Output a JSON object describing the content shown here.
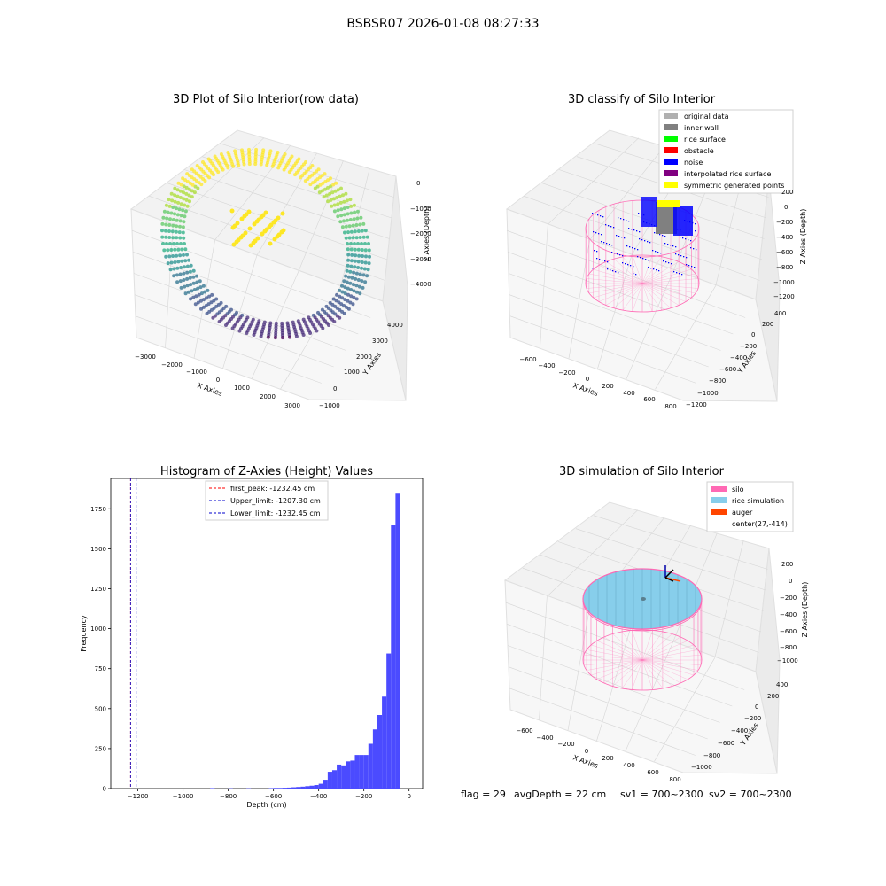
{
  "figure": {
    "suptitle": "BSBSR07 2026-01-08 08:27:33",
    "status": {
      "flag": "flag = 29",
      "avg_depth": "avgDepth = 22 cm",
      "sv1": "sv1 = 700~2300",
      "sv2": "sv2 = 700~2300"
    }
  },
  "colors": {
    "pane": "#f2f2f2",
    "pane_edge": "#e0e0e0",
    "hist_bar": "#4b4bff",
    "first_peak": "#ff0000",
    "limit": "#0000cc",
    "silo": "#ff69b4",
    "rice": "#87ceeb",
    "auger": "#ff4500",
    "noise": "#0000ff",
    "inner_wall": "#808080",
    "original": "#b0b0b0",
    "rice_surface": "#00ff00",
    "obstacle": "#ff0000",
    "interpolated": "#800080",
    "symmetric": "#ffff00"
  },
  "chart_data": [
    {
      "type": "scatter",
      "title": "3D Plot of Silo Interior(row data)",
      "xlabel": "X Axies",
      "ylabel": "Y Axies",
      "zlabel": "Z Axies (Depth)",
      "x_ticks": [
        "−3000",
        "−2000",
        "−1000",
        "0",
        "1000",
        "2000",
        "3000"
      ],
      "y_ticks": [
        "−1000",
        "0",
        "1000",
        "2000",
        "3000",
        "4000"
      ],
      "z_ticks": [
        "0",
        "−1000",
        "−2000",
        "−3000",
        "−4000"
      ],
      "colormap": "viridis"
    },
    {
      "type": "scatter",
      "title": "3D classify of Silo Interior",
      "xlabel": "X Axies",
      "ylabel": "Y Axies",
      "zlabel": "Z Axies (Depth)",
      "x_ticks": [
        "−600",
        "−400",
        "−200",
        "0",
        "200",
        "400",
        "600",
        "800"
      ],
      "y_ticks": [
        "−1200",
        "−1000",
        "−800",
        "−600",
        "−400",
        "−200",
        "0",
        "200",
        "400"
      ],
      "z_ticks": [
        "200",
        "0",
        "−200",
        "−400",
        "−600",
        "−800",
        "−1000",
        "−1200"
      ],
      "legend": [
        {
          "label": "original data",
          "color": "#b0b0b0"
        },
        {
          "label": "inner wall",
          "color": "#808080"
        },
        {
          "label": "rice surface",
          "color": "#00ff00"
        },
        {
          "label": "obstacle",
          "color": "#ff0000"
        },
        {
          "label": "noise",
          "color": "#0000ff"
        },
        {
          "label": "interpolated rice surface",
          "color": "#800080"
        },
        {
          "label": "symmetric generated points",
          "color": "#ffff00"
        }
      ],
      "legend_position": "top-right"
    },
    {
      "type": "bar",
      "title": "Histogram of Z-Axies (Height) Values",
      "xlabel": "Depth (cm)",
      "ylabel": "Frequency",
      "xlim": [
        -1320,
        60
      ],
      "ylim": [
        0,
        1940
      ],
      "x_ticks": [
        -1200,
        -1000,
        -800,
        -600,
        -400,
        -200,
        0
      ],
      "x_tick_labels": [
        "−1200",
        "−1000",
        "−800",
        "−600",
        "−400",
        "−200",
        "0"
      ],
      "y_ticks": [
        0,
        250,
        500,
        750,
        1000,
        1250,
        1500,
        1750
      ],
      "bin_width": 20,
      "bins": [
        {
          "x": -880,
          "v": 3
        },
        {
          "x": -800,
          "v": 2
        },
        {
          "x": -720,
          "v": 2
        },
        {
          "x": -620,
          "v": 3
        },
        {
          "x": -600,
          "v": 4
        },
        {
          "x": -580,
          "v": 4
        },
        {
          "x": -560,
          "v": 5
        },
        {
          "x": -540,
          "v": 6
        },
        {
          "x": -520,
          "v": 8
        },
        {
          "x": -500,
          "v": 10
        },
        {
          "x": -480,
          "v": 12
        },
        {
          "x": -460,
          "v": 15
        },
        {
          "x": -440,
          "v": 18
        },
        {
          "x": -420,
          "v": 22
        },
        {
          "x": -400,
          "v": 30
        },
        {
          "x": -380,
          "v": 55
        },
        {
          "x": -360,
          "v": 105
        },
        {
          "x": -340,
          "v": 115
        },
        {
          "x": -320,
          "v": 150
        },
        {
          "x": -300,
          "v": 145
        },
        {
          "x": -280,
          "v": 170
        },
        {
          "x": -260,
          "v": 175
        },
        {
          "x": -240,
          "v": 210
        },
        {
          "x": -220,
          "v": 210
        },
        {
          "x": -200,
          "v": 210
        },
        {
          "x": -180,
          "v": 280
        },
        {
          "x": -160,
          "v": 370
        },
        {
          "x": -140,
          "v": 460
        },
        {
          "x": -120,
          "v": 575
        },
        {
          "x": -100,
          "v": 845
        },
        {
          "x": -80,
          "v": 1650
        },
        {
          "x": -60,
          "v": 1850
        }
      ],
      "vlines": [
        {
          "label": "first_peak: -1232.45 cm",
          "x": -1232.45,
          "color": "#ff0000"
        },
        {
          "label": "Upper_limit: -1207.30 cm",
          "x": -1207.3,
          "color": "#0000cc"
        },
        {
          "label": "Lower_limit: -1232.45 cm",
          "x": -1232.45,
          "color": "#0000cc"
        }
      ],
      "legend_position": "top-center"
    },
    {
      "type": "scatter",
      "title": "3D simulation of Silo Interior",
      "xlabel": "X Axies",
      "ylabel": "Y Axies",
      "zlabel": "Z Axies (Depth)",
      "x_ticks": [
        "−600",
        "−400",
        "−200",
        "0",
        "200",
        "400",
        "600",
        "800"
      ],
      "y_ticks": [
        "−1000",
        "−800",
        "−600",
        "−400",
        "−200",
        "0",
        "200",
        "400"
      ],
      "z_ticks": [
        "200",
        "0",
        "−200",
        "−400",
        "−600",
        "−800",
        "−1000"
      ],
      "legend": [
        {
          "label": "silo",
          "color": "#ff69b4"
        },
        {
          "label": "rice simulation",
          "color": "#87ceeb"
        },
        {
          "label": "auger",
          "color": "#ff4500"
        },
        {
          "label": "center(27,-414)",
          "color": ""
        }
      ],
      "legend_position": "top-right"
    }
  ]
}
